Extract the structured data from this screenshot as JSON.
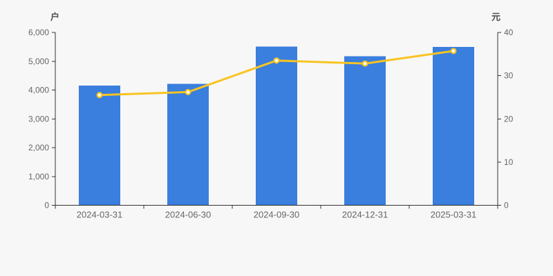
{
  "chart_data": {
    "type": "bar",
    "title": "",
    "categories": [
      "2024-03-31",
      "2024-06-30",
      "2024-09-30",
      "2024-12-31",
      "2025-03-31"
    ],
    "series": [
      {
        "type": "bar",
        "axis": "left",
        "values": [
          4150,
          4220,
          5510,
          5170,
          5500
        ]
      },
      {
        "type": "line",
        "axis": "right",
        "values": [
          25.5,
          26.2,
          33.5,
          32.8,
          35.7
        ]
      }
    ],
    "left_axis": {
      "unit": "户",
      "min": 0,
      "max": 6000,
      "tick_step": 1000,
      "tick_labels": [
        "0",
        "1,000",
        "2,000",
        "3,000",
        "4,000",
        "5,000",
        "6,000"
      ]
    },
    "right_axis": {
      "unit": "元",
      "min": 0,
      "max": 40,
      "tick_step": 10,
      "tick_labels": [
        "0",
        "10",
        "20",
        "30",
        "40"
      ]
    },
    "grid": false,
    "legend": "none",
    "colors": {
      "bar": "#3a7ede",
      "line": "#f8c422",
      "marker_fill": "#ffffff",
      "axis": "#333333",
      "tick_text": "#666666",
      "unit_text": "#4d4d4d",
      "background": "#f7f7f7"
    }
  }
}
